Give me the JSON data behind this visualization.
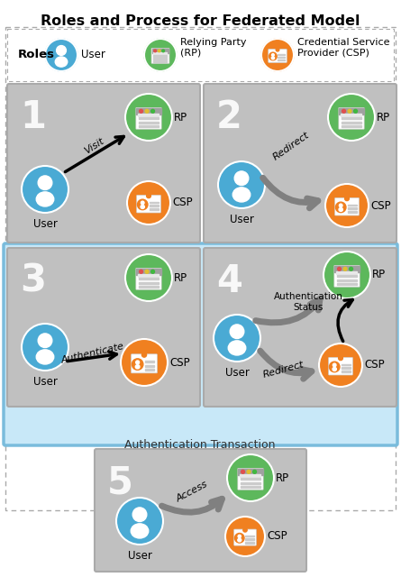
{
  "title": "Roles and Process for Federated Model",
  "bg_color": "#ffffff",
  "panel_bg": "#c0c0c0",
  "blue_color": "#4aaad4",
  "green_color": "#5db85c",
  "orange_color": "#f08020",
  "light_blue_bg": "#c8e8f8",
  "light_blue_border": "#7abcdc",
  "panel_border": "#aaaaaa",
  "outer_border": "#aaaaaa",
  "auth_label": "Authentication Transaction",
  "title_fontsize": 11.5,
  "roles_label": "Roles",
  "user_label": "User",
  "rp_label1": "Relying Party",
  "rp_label2": "(RP)",
  "csp_label1": "Credential Service",
  "csp_label2": "Provider (CSP)"
}
